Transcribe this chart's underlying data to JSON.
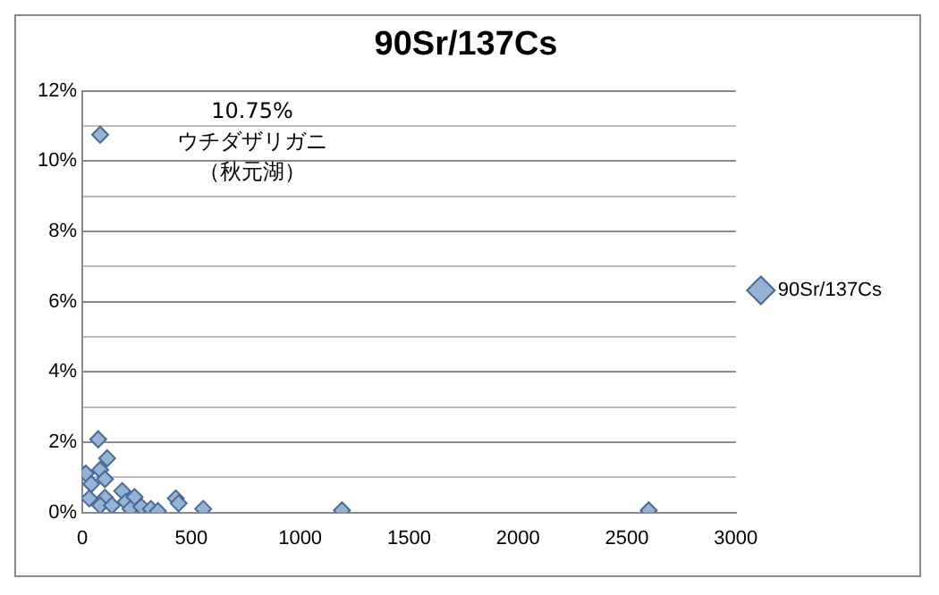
{
  "chart_data": {
    "type": "scatter",
    "title": "90Sr/137Cs",
    "x": [
      82,
      73,
      114,
      16,
      82,
      104,
      41,
      32,
      88,
      104,
      82,
      136,
      183,
      199,
      240,
      221,
      271,
      315,
      347,
      429,
      442,
      555,
      1192,
      2600
    ],
    "series": [
      {
        "name": "90Sr/137Cs",
        "color": "#95b3d7",
        "values": [
          10.75,
          2.08,
          1.54,
          1.11,
          1.21,
          0.95,
          0.81,
          0.4,
          null,
          0.42,
          0.2,
          0.2,
          0.61,
          0.3,
          0.44,
          0.1,
          0.16,
          0.1,
          0.04,
          0.4,
          0.26,
          0.1,
          0.06,
          0.06
        ]
      }
    ],
    "annotations": [
      "10.75%",
      "ウチダザリガニ",
      "（秋元湖）"
    ],
    "xlim": [
      0,
      3000
    ],
    "xticks": [
      0,
      500,
      1000,
      1500,
      2000,
      2500,
      3000
    ],
    "ylim": [
      0,
      12
    ],
    "yticks": [
      {
        "value": 0,
        "label": "0%"
      },
      {
        "value": 1,
        "label": null
      },
      {
        "value": 2,
        "label": "2%"
      },
      {
        "value": 3,
        "label": null
      },
      {
        "value": 4,
        "label": "4%"
      },
      {
        "value": 5,
        "label": null
      },
      {
        "value": 6,
        "label": "6%"
      },
      {
        "value": 7,
        "label": null
      },
      {
        "value": 8,
        "label": "8%"
      },
      {
        "value": 9,
        "label": null
      },
      {
        "value": 10,
        "label": "10%"
      },
      {
        "value": 11,
        "label": null
      },
      {
        "value": 12,
        "label": "12%"
      }
    ],
    "grid": "y",
    "legend": "right",
    "marker": "diamond"
  }
}
